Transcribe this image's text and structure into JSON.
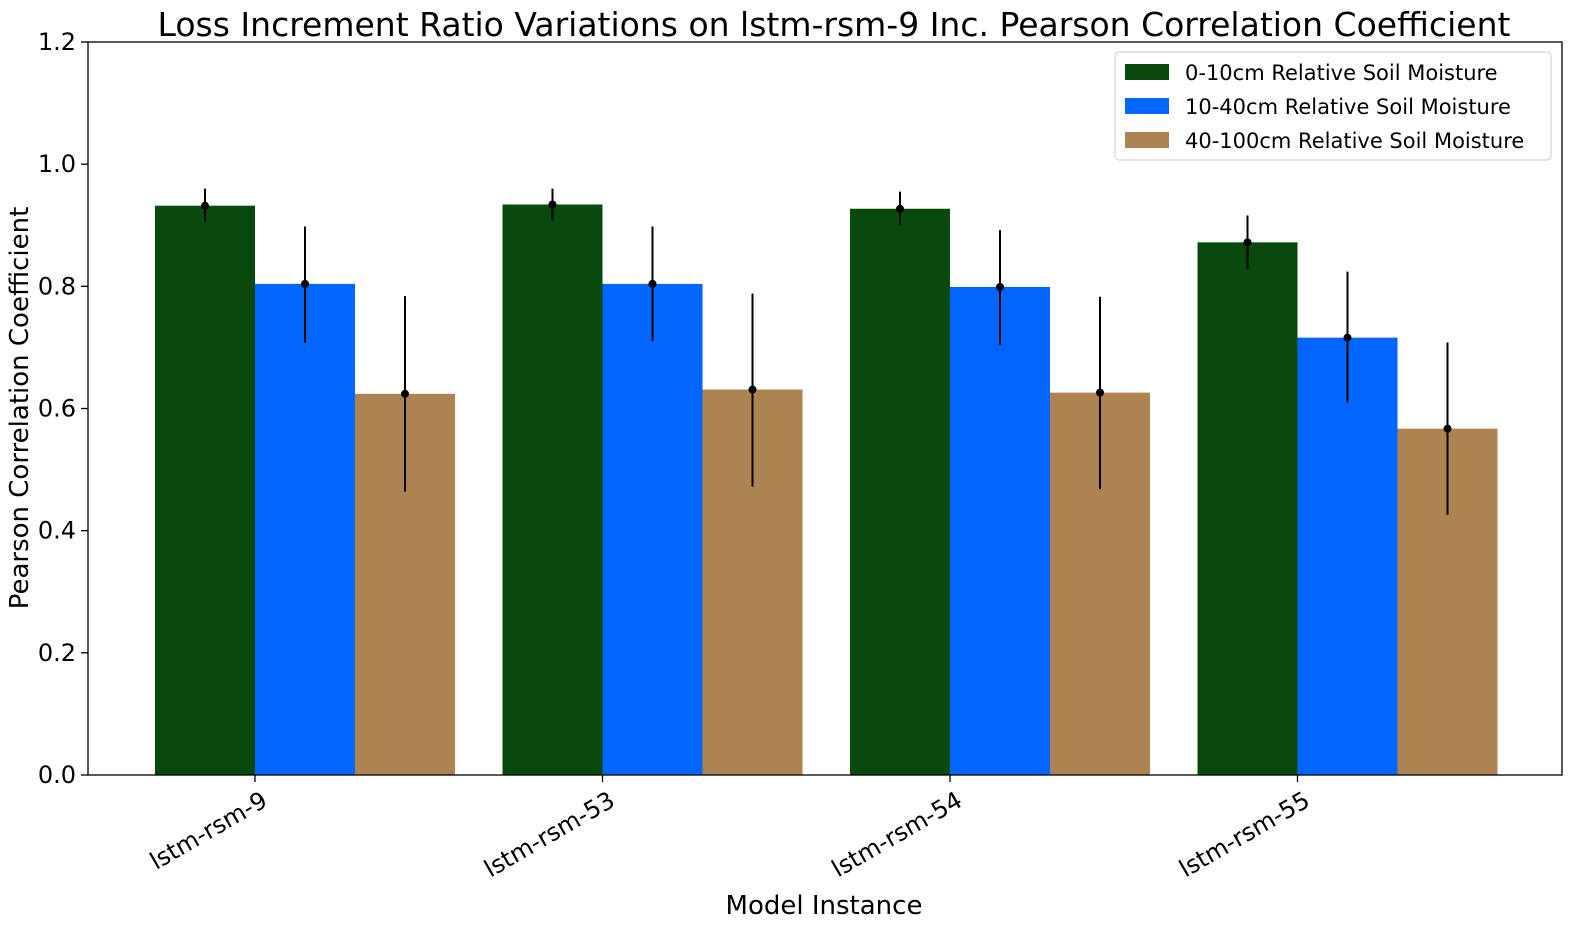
{
  "chart_data": {
    "type": "bar",
    "title": "Loss Increment Ratio Variations on lstm-rsm-9 Inc. Pearson Correlation Coefficient",
    "xlabel": "Model Instance",
    "ylabel": "Pearson Correlation Coefficient",
    "ylim": [
      0.0,
      1.2
    ],
    "yticks": [
      "0.0",
      "0.2",
      "0.4",
      "0.6",
      "0.8",
      "1.0",
      "1.2"
    ],
    "grid": false,
    "legend_position": "top-right",
    "categories": [
      "lstm-rsm-9",
      "lstm-rsm-53",
      "lstm-rsm-54",
      "lstm-rsm-55"
    ],
    "series": [
      {
        "name": "0-10cm Relative Soil Moisture",
        "color": "#08490d",
        "values": [
          0.932,
          0.934,
          0.927,
          0.872
        ],
        "err_low": [
          0.906,
          0.908,
          0.9,
          0.828
        ],
        "err_high": [
          0.96,
          0.96,
          0.955,
          0.916
        ]
      },
      {
        "name": "10-40cm Relative Soil Moisture",
        "color": "#0066ff",
        "values": [
          0.804,
          0.804,
          0.799,
          0.716
        ],
        "err_low": [
          0.708,
          0.71,
          0.704,
          0.61
        ],
        "err_high": [
          0.898,
          0.898,
          0.892,
          0.824
        ]
      },
      {
        "name": "40-100cm Relative Soil Moisture",
        "color": "#ad8352",
        "values": [
          0.624,
          0.631,
          0.626,
          0.567
        ],
        "err_low": [
          0.464,
          0.472,
          0.468,
          0.426
        ],
        "err_high": [
          0.784,
          0.788,
          0.783,
          0.708
        ]
      }
    ]
  }
}
